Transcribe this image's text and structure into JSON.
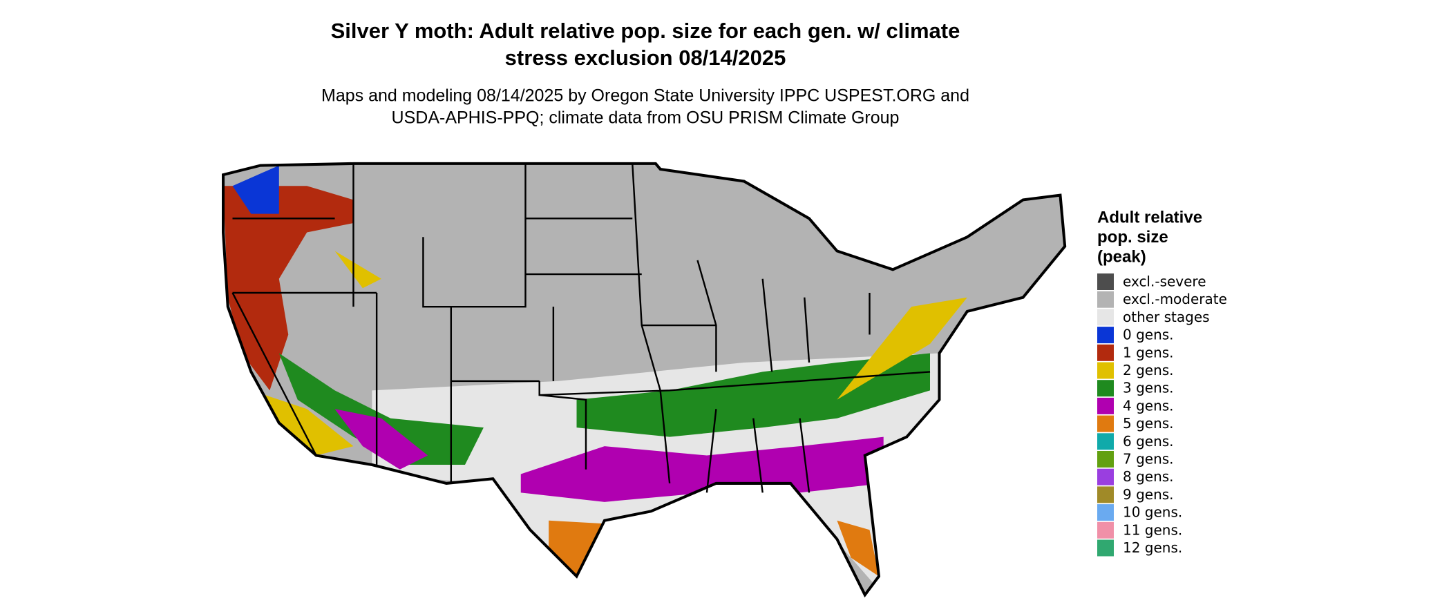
{
  "title": [
    "Silver Y moth: Adult relative pop. size for each gen. w/ climate",
    "stress exclusion 08/14/2025"
  ],
  "subtitle": [
    "Maps and modeling 08/14/2025 by Oregon State University IPPC USPEST.ORG and",
    "USDA-APHIS-PPQ; climate data from OSU PRISM Climate Group"
  ],
  "legend": {
    "title": [
      "Adult relative",
      "pop. size",
      "(peak)"
    ],
    "items": [
      {
        "label": "excl.-severe",
        "color": "#4d4d4d"
      },
      {
        "label": "excl.-moderate",
        "color": "#b3b3b3"
      },
      {
        "label": "other stages",
        "color": "#e6e6e6"
      },
      {
        "label": "0 gens.",
        "color": "#0a36d6"
      },
      {
        "label": "1 gens.",
        "color": "#b22a0e"
      },
      {
        "label": "2 gens.",
        "color": "#e0c000"
      },
      {
        "label": "3 gens.",
        "color": "#1f8a1f"
      },
      {
        "label": "4 gens.",
        "color": "#b000b0"
      },
      {
        "label": "5 gens.",
        "color": "#e07a10"
      },
      {
        "label": "6 gens.",
        "color": "#10aaaa"
      },
      {
        "label": "7 gens.",
        "color": "#62a010"
      },
      {
        "label": "8 gens.",
        "color": "#9a3ee0"
      },
      {
        "label": "9 gens.",
        "color": "#a08a28"
      },
      {
        "label": "10 gens.",
        "color": "#6aaaf0"
      },
      {
        "label": "11 gens.",
        "color": "#f090a8"
      },
      {
        "label": "12 gens.",
        "color": "#30a870"
      }
    ]
  }
}
